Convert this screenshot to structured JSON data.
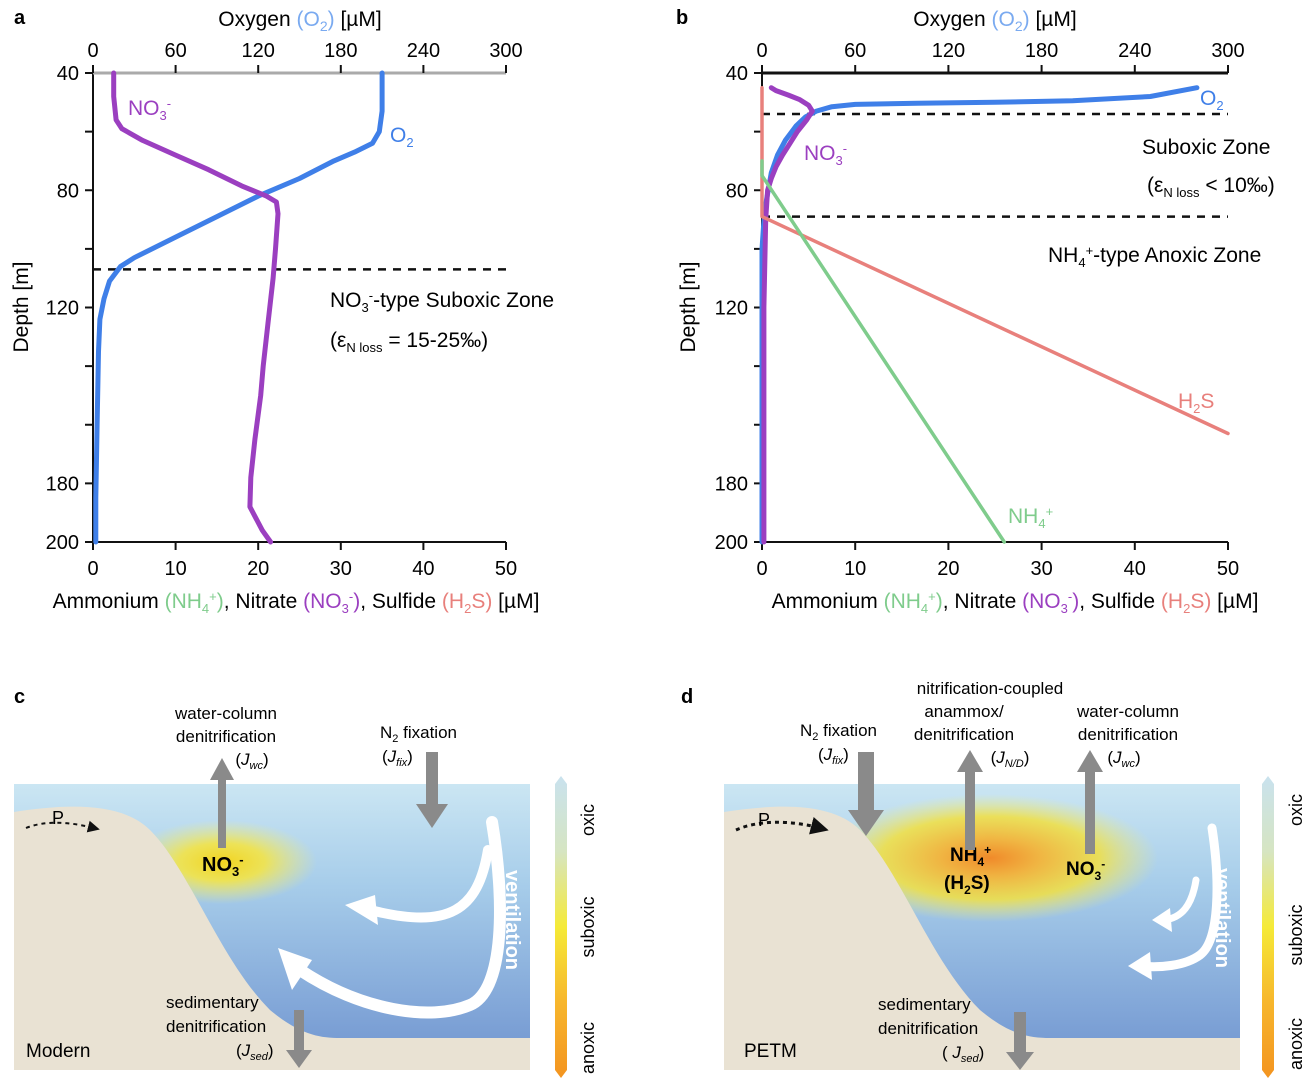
{
  "panel_a": {
    "letter": "a",
    "top_axis_label": {
      "pre": "Oxygen ",
      "species": "(O",
      "sub": "2",
      "post_species": ")",
      "unit": "  [µM]"
    },
    "left_axis_label": "Depth [m]",
    "bottom_axis_label": {
      "p1": "Ammonium ",
      "nh4": "(NH",
      "nh4_sub": "4",
      "nh4_sup": "+",
      "nh4_close": ")",
      "p2": ", Nitrate ",
      "no3": "(NO",
      "no3_sub": "3",
      "no3_sup": "-",
      "no3_close": ")",
      "p3": ", Sulfide ",
      "h2s_a": "(H",
      "h2s_sub": "2",
      "h2s_b": "S)",
      "unit": "  [µM]"
    },
    "zone_label": {
      "main_a": "NO",
      "main_sub": "3",
      "main_sup": "-",
      "main_b": "-type Suboxic Zone",
      "eps_a": "(ε",
      "eps_sub": "N loss",
      "eps_b": " = 15-25‰)"
    },
    "series_labels": {
      "no3_a": "NO",
      "no3_sub": "3",
      "no3_sup": "-",
      "o2_a": "O",
      "o2_sub": "2"
    }
  },
  "panel_b": {
    "letter": "b",
    "top_axis_label": {
      "pre": "Oxygen ",
      "species": "(O",
      "sub": "2",
      "post_species": ")",
      "unit": "  [µM]"
    },
    "left_axis_label": "Depth [m]",
    "bottom_axis_label": {
      "p1": "Ammonium ",
      "nh4": "(NH",
      "nh4_sub": "4",
      "nh4_sup": "+",
      "nh4_close": ")",
      "p2": ", Nitrate ",
      "no3": "(NO",
      "no3_sub": "3",
      "no3_sup": "-",
      "no3_close": ")",
      "p3": ", Sulfide ",
      "h2s_a": "(H",
      "h2s_sub": "2",
      "h2s_b": "S)",
      "unit": "  [µM]"
    },
    "zone1": {
      "main": "Suboxic Zone",
      "eps_a": "(ε",
      "eps_sub": "N loss",
      "eps_b": " < 10‰)"
    },
    "zone2": {
      "a": "NH",
      "sub": "4",
      "sup": "+",
      "b": "-type Anoxic Zone"
    },
    "series_labels": {
      "o2_a": "O",
      "o2_sub": "2",
      "no3_a": "NO",
      "no3_sub": "3",
      "no3_sup": "-",
      "h2s_a": "H",
      "h2s_sub": "2",
      "h2s_b": "S",
      "nh4_a": "NH",
      "nh4_sub": "4",
      "nh4_sup": "+"
    }
  },
  "panel_c": {
    "letter": "c",
    "wc_denit": {
      "l1": "water-column",
      "l2": "denitrification",
      "l3_a": "(",
      "l3_j": "J",
      "l3_sub": "wc",
      "l3_b": ")"
    },
    "n2fix": {
      "l1_a": "N",
      "l1_sub": "2",
      "l1_b": " fixation",
      "l2_a": "(",
      "l2_j": "J",
      "l2_sub": "fix",
      "l2_b": ")"
    },
    "sed_denit": {
      "l1": "sedimentary",
      "l2": "denitrification",
      "l3_a": "(",
      "l3_j": "J",
      "l3_sub": "sed",
      "l3_b": ")"
    },
    "p_label": "P",
    "no3_a": "NO",
    "no3_sub": "3",
    "no3_sup": "-",
    "ventilation": "ventilation",
    "era": "Modern"
  },
  "panel_d": {
    "letter": "d",
    "n2fix": {
      "l1_a": "N",
      "l1_sub": "2",
      "l1_b": " fixation",
      "l2_a": "(",
      "l2_j": "J",
      "l2_sub": "fix",
      "l2_b": ")"
    },
    "nitr": {
      "l1": "nitrification-coupled",
      "l2": "anammox/",
      "l3": "denitrification",
      "l4_a": "(",
      "l4_j": "J",
      "l4_sub": "N/D",
      "l4_b": ")"
    },
    "wc_denit": {
      "l1": "water-column",
      "l2": "denitrification",
      "l3_a": "(",
      "l3_j": "J",
      "l3_sub": "wc",
      "l3_b": ")"
    },
    "sed_denit": {
      "l1": "sedimentary",
      "l2": "denitrification",
      "l3_a": "( ",
      "l3_j": "J",
      "l3_sub": "sed",
      "l3_b": ")"
    },
    "p_label": "P",
    "nh4_a": "NH",
    "nh4_sub": "4",
    "nh4_sup": "+",
    "h2s_a": "(H",
    "h2s_sub": "2",
    "h2s_b": "S)",
    "no3_a": "NO",
    "no3_sub": "3",
    "no3_sup": "-",
    "ventilation": "ventilation",
    "era": "PETM"
  },
  "colorbar": {
    "oxic": "oxic",
    "suboxic": "suboxic",
    "anoxic": "anoxic"
  },
  "colors": {
    "o2": "#3f7fe8",
    "no3": "#9b3fc0",
    "h2s": "#e8807c",
    "nh4": "#7fcc8c",
    "arrow": "#8a8a8a",
    "sediment": "#e9e2d3"
  },
  "chart_data": [
    {
      "type": "line",
      "panel": "a",
      "x_top_label": "Oxygen (O2) [µM]",
      "x_top_ticks": [
        0,
        60,
        120,
        180,
        240,
        300
      ],
      "x_top_range": [
        0,
        300
      ],
      "x_bottom_label": "Ammonium (NH4+), Nitrate (NO3-), Sulfide (H2S) [µM]",
      "x_bottom_ticks": [
        0,
        10,
        20,
        30,
        40,
        50
      ],
      "x_bottom_range": [
        0,
        50
      ],
      "ylabel": "Depth [m]",
      "y_ticks": [
        40,
        80,
        120,
        180,
        200
      ],
      "y_ticks_all": [
        40,
        60,
        80,
        100,
        120,
        140,
        160,
        180,
        200
      ],
      "y_range": [
        40,
        200
      ],
      "dashed_lines_depth": [
        107
      ],
      "series": [
        {
          "name": "O2",
          "axis": "top",
          "points": [
            [
              210,
              40
            ],
            [
              210,
              53
            ],
            [
              208,
              60
            ],
            [
              203,
              64
            ],
            [
              190,
              67
            ],
            [
              175,
              70
            ],
            [
              150,
              76
            ],
            [
              120,
              82
            ],
            [
              90,
              89
            ],
            [
              60,
              96
            ],
            [
              30,
              103
            ],
            [
              20,
              106
            ],
            [
              12,
              111
            ],
            [
              8,
              117
            ],
            [
              5,
              124
            ],
            [
              4,
              135
            ],
            [
              3,
              160
            ],
            [
              2,
              185
            ],
            [
              2,
              200
            ]
          ]
        },
        {
          "name": "NO3-",
          "axis": "bottom",
          "points": [
            [
              2.5,
              40
            ],
            [
              2.5,
              48
            ],
            [
              2.8,
              56
            ],
            [
              3.5,
              59
            ],
            [
              6,
              63
            ],
            [
              10,
              68
            ],
            [
              14,
              73
            ],
            [
              18,
              78.5
            ],
            [
              21,
              82
            ],
            [
              22.2,
              84
            ],
            [
              22.4,
              88
            ],
            [
              22.1,
              100
            ],
            [
              21.8,
              110
            ],
            [
              21.2,
              125
            ],
            [
              20.6,
              140
            ],
            [
              20.3,
              150
            ],
            [
              19.6,
              165
            ],
            [
              19.1,
              178
            ],
            [
              19,
              188
            ],
            [
              20.5,
              196
            ],
            [
              21.5,
              200
            ]
          ]
        }
      ]
    },
    {
      "type": "line",
      "panel": "b",
      "x_top_label": "Oxygen (O2) [µM]",
      "x_top_ticks": [
        0,
        60,
        120,
        180,
        240,
        300
      ],
      "x_top_range": [
        0,
        300
      ],
      "x_bottom_label": "Ammonium (NH4+), Nitrate (NO3-), Sulfide (H2S) [µM]",
      "x_bottom_ticks": [
        0,
        10,
        20,
        30,
        40,
        50
      ],
      "x_bottom_range": [
        0,
        50
      ],
      "ylabel": "Depth [m]",
      "y_ticks": [
        40,
        80,
        120,
        180,
        200
      ],
      "y_ticks_all": [
        40,
        60,
        80,
        100,
        120,
        140,
        160,
        180,
        200
      ],
      "y_range": [
        40,
        200
      ],
      "dashed_lines_depth": [
        54,
        89
      ],
      "series": [
        {
          "name": "O2",
          "axis": "top",
          "points": [
            [
              280,
              45
            ],
            [
              250,
              48
            ],
            [
              200,
              49.5
            ],
            [
              150,
              50
            ],
            [
              100,
              50.3
            ],
            [
              60,
              50.7
            ],
            [
              45,
              51.5
            ],
            [
              35,
              53
            ],
            [
              28,
              55
            ],
            [
              22,
              58
            ],
            [
              15,
              63
            ],
            [
              10,
              68
            ],
            [
              6,
              74
            ],
            [
              4,
              80
            ],
            [
              2,
              86
            ],
            [
              1,
              92
            ],
            [
              0,
              100
            ],
            [
              0,
              200
            ]
          ]
        },
        {
          "name": "NO3-",
          "axis": "bottom",
          "points": [
            [
              1,
              45
            ],
            [
              1.5,
              46
            ],
            [
              2.8,
              47.5
            ],
            [
              4,
              49
            ],
            [
              5,
              51
            ],
            [
              5.4,
              53
            ],
            [
              4.8,
              56
            ],
            [
              3.8,
              60
            ],
            [
              3,
              64
            ],
            [
              2.2,
              68
            ],
            [
              1.5,
              72
            ],
            [
              1,
              76
            ],
            [
              0.6,
              80
            ],
            [
              0.4,
              90
            ],
            [
              0.2,
              120
            ],
            [
              0.2,
              200
            ]
          ]
        },
        {
          "name": "H2S",
          "axis": "bottom",
          "points": [
            [
              0,
              45
            ],
            [
              0,
              89
            ],
            [
              50,
              163
            ]
          ]
        },
        {
          "name": "NH4+",
          "axis": "bottom",
          "points": [
            [
              0,
              70
            ],
            [
              0,
              75
            ],
            [
              26,
              200
            ]
          ]
        }
      ]
    }
  ]
}
